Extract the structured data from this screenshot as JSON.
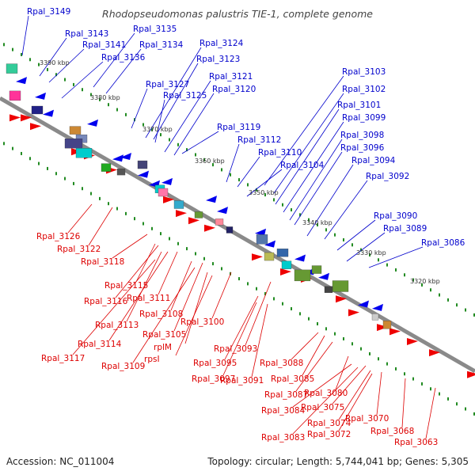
{
  "title": "Rhodopseudomonas palustris TIE-1, complete genome",
  "footer": {
    "accession": "Accession: NC_011004",
    "summary": "Topology: circular; Length: 5,744,041 bp; Genes: 5,305"
  },
  "colors": {
    "forward_label": "#0000cc",
    "reverse_label": "#dd0000",
    "backbone": "#777777",
    "tick": "#228b22",
    "forward_gene": "#0000ff",
    "reverse_gene": "#ff0000"
  },
  "scale_marks": [
    "3390 kbp",
    "3380 kbp",
    "3370 kbp",
    "3360 kbp",
    "3350 kbp",
    "3340 kbp",
    "3330 kbp",
    "3320 kbp"
  ],
  "forward_labels": [
    "Rpal_3149",
    "Rpal_3143",
    "Rpal_3141",
    "Rpal_3135",
    "Rpal_3136",
    "Rpal_3134",
    "Rpal_3124",
    "Rpal_3123",
    "Rpal_3127",
    "Rpal_3121",
    "Rpal_3125",
    "Rpal_3120",
    "Rpal_3119",
    "Rpal_3112",
    "Rpal_3110",
    "Rpal_3104",
    "Rpal_3103",
    "Rpal_3102",
    "Rpal_3101",
    "Rpal_3099",
    "Rpal_3098",
    "Rpal_3096",
    "Rpal_3094",
    "Rpal_3092",
    "Rpal_3090",
    "Rpal_3089",
    "Rpal_3086"
  ],
  "reverse_labels": [
    "Rpal_3126",
    "Rpal_3122",
    "Rpal_3118",
    "Rpal_3115",
    "Rpal_3116",
    "Rpal_3111",
    "Rpal_3113",
    "Rpal_3108",
    "Rpal_3114",
    "Rpal_3100",
    "Rpal_3105",
    "Rpal_3117",
    "rplM",
    "Rpal_3109",
    "rpsI",
    "Rpal_3093",
    "Rpal_3095",
    "Rpal_3097",
    "Rpal_3091",
    "Rpal_3088",
    "Rpal_3085",
    "Rpal_3087",
    "Rpal_3080",
    "Rpal_3084",
    "Rpal_3075",
    "Rpal_3074",
    "Rpal_3070",
    "Rpal_3083",
    "Rpal_3072",
    "Rpal_3068",
    "Rpal_3063"
  ]
}
